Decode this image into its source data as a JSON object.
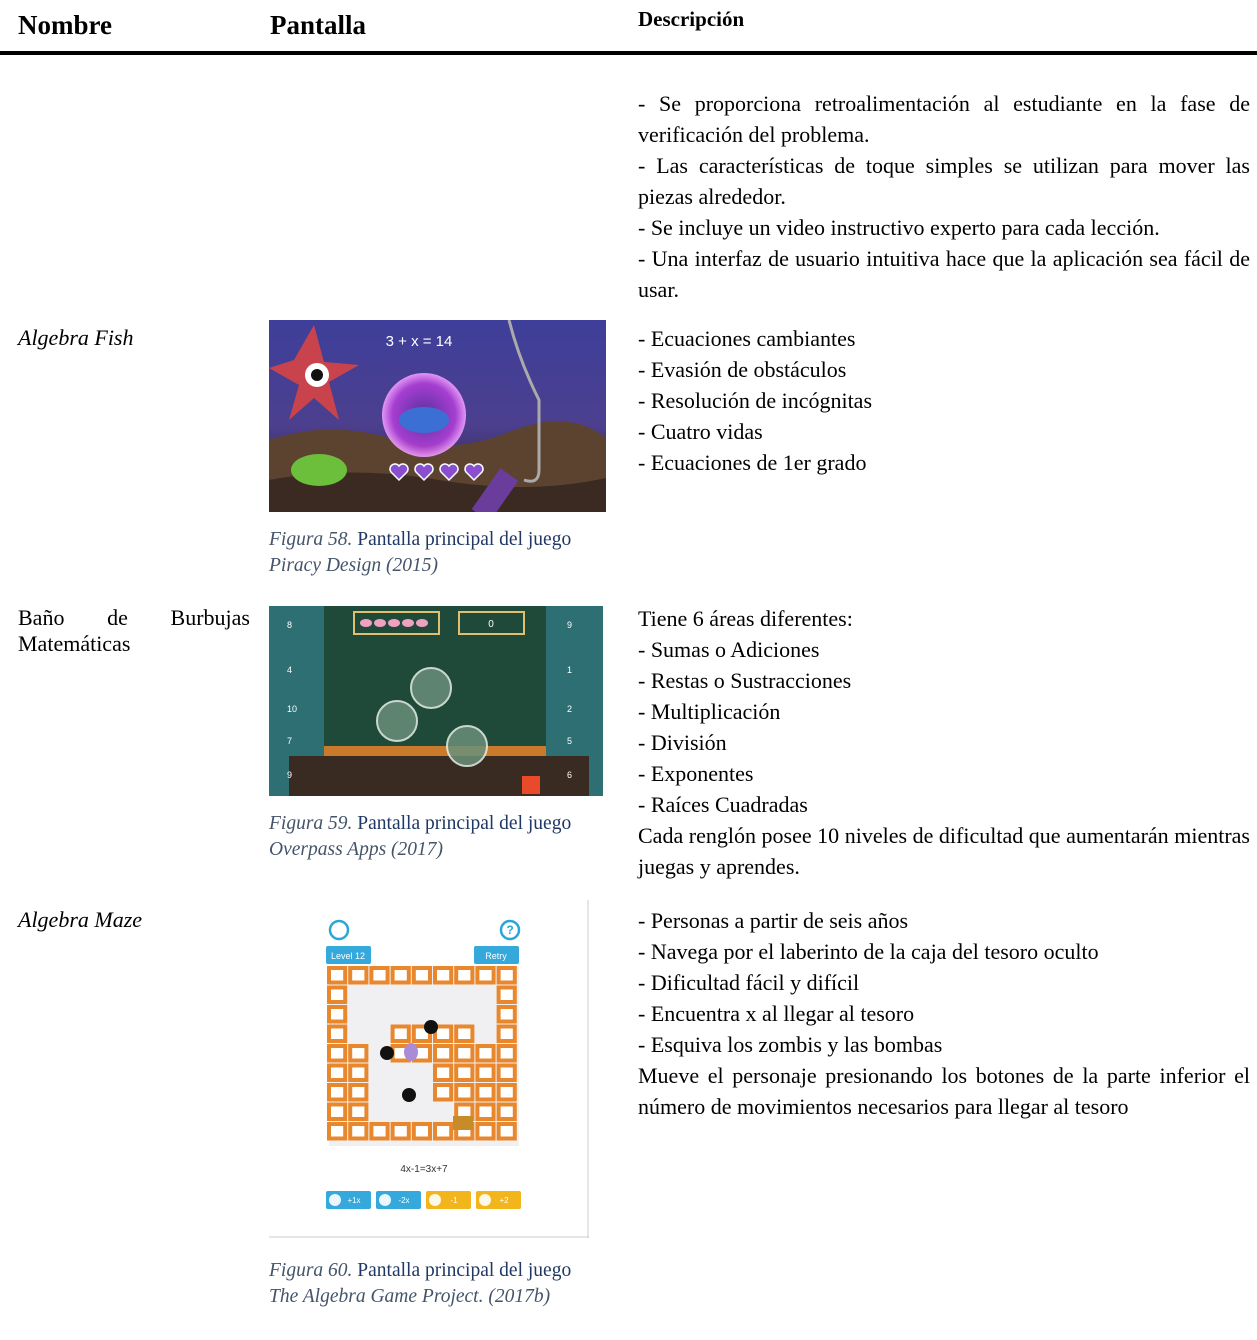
{
  "header": {
    "nombre": "Nombre",
    "pantalla": "Pantalla",
    "descripcion": "Descripción"
  },
  "rows": [
    {
      "description": [
        "- Se proporciona retroalimentación al estudiante en la fase de verificación del problema.",
        "- Las características de toque simples se utilizan para mover las piezas alrededor.",
        "- Se incluye un video instructivo experto para cada lección.",
        "- Una interfaz de usuario intuitiva hace que la aplicación sea fácil de usar."
      ]
    },
    {
      "name": "Algebra Fish",
      "screen": {
        "equation": "3 + x = 14"
      },
      "caption": {
        "label": "Figura 58.",
        "text": "Pantalla principal del juego",
        "source": "Piracy Design (2015)"
      },
      "description": [
        "- Ecuaciones cambiantes",
        "- Evasión de obstáculos",
        "- Resolución de incógnitas",
        "- Cuatro vidas",
        "- Ecuaciones de 1er grado"
      ]
    },
    {
      "name": "Baño de Burbujas Matemáticas",
      "screen": {
        "score": "0",
        "left_numbers": [
          "8",
          "4",
          "10",
          "7",
          "9"
        ],
        "right_numbers": [
          "9",
          "1",
          "2",
          "5",
          "6"
        ]
      },
      "caption": {
        "label": "Figura 59.",
        "text": "Pantalla principal del juego",
        "source": "Overpass Apps (2017)"
      },
      "description": [
        "Tiene 6 áreas diferentes:",
        "- Sumas o Adiciones",
        "- Restas o Sustracciones",
        "- Multiplicación",
        "- División",
        "- Exponentes",
        "- Raíces Cuadradas",
        "Cada renglón posee 10 niveles de dificultad que aumentarán mientras juegas y aprendes."
      ]
    },
    {
      "name": "Algebra Maze",
      "screen": {
        "level": "Level 12",
        "retry": "Retry",
        "equation": "4x-1=3x+7",
        "buttons": [
          "+1x",
          "-2x",
          "-1",
          "+2"
        ]
      },
      "caption": {
        "label": "Figura 60.",
        "text": "Pantalla principal del juego",
        "source": "The Algebra Game Project. (2017b)"
      },
      "description": [
        "- Personas a partir de seis años",
        "- Navega por el laberinto de la caja del tesoro oculto",
        "- Dificultad fácil y difícil",
        "- Encuentra x al llegar al tesoro",
        "- Esquiva los zombis y las bombas",
        "Mueve el personaje presionando los botones de la parte inferior el número de movimientos necesarios para llegar al tesoro"
      ]
    }
  ]
}
